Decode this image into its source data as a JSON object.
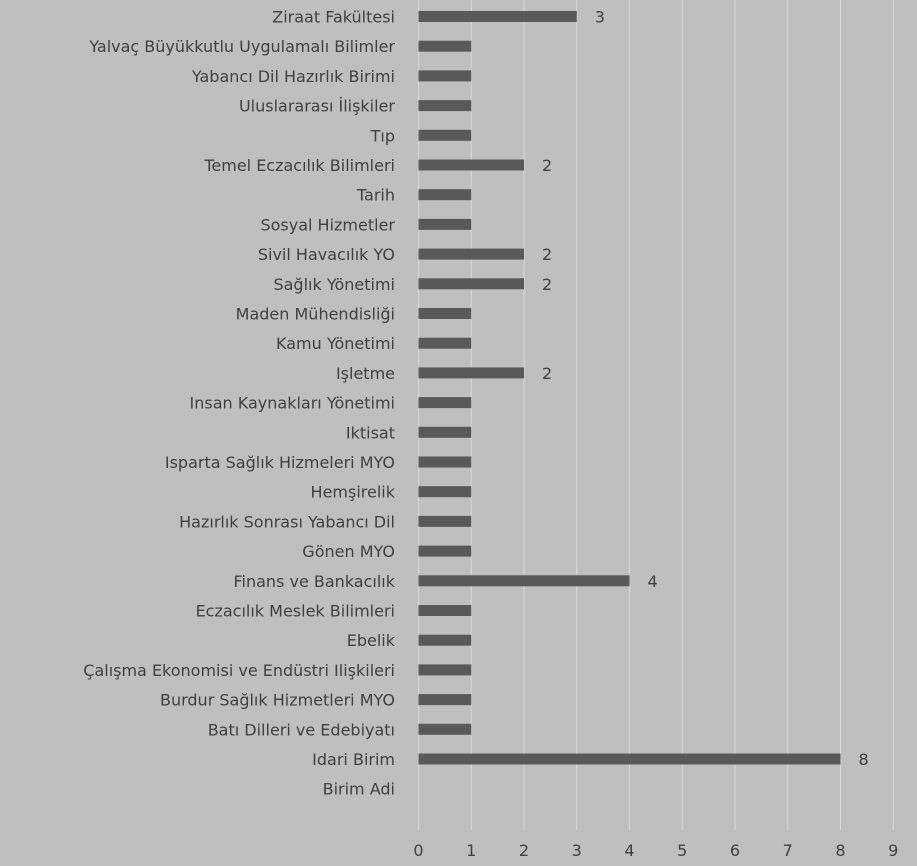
{
  "chart_data": {
    "type": "bar",
    "orientation": "horizontal",
    "title": "",
    "xlabel": "",
    "ylabel": "",
    "xlim": [
      0,
      9
    ],
    "x_ticks": [
      "0",
      "1",
      "2",
      "3",
      "4",
      "5",
      "6",
      "7",
      "8",
      "9"
    ],
    "grid": true,
    "legend": "none",
    "colors": {
      "background": "#bfbfbf",
      "bar": "#595959",
      "gridline": "#d9d9d9",
      "text": "#404040"
    },
    "categories": [
      "Ziraat Fakültesi",
      "Yalvaç Büyükkutlu Uygulamalı Bilimler",
      "Yabancı Dil Hazırlık Birimi",
      "Uluslararası İlişkiler",
      "Tıp",
      "Temel Eczacılık Bilimleri",
      "Tarih",
      "Sosyal Hizmetler",
      "Sivil Havacılık YO",
      "Sağlık Yönetimi",
      "Maden Mühendisliği",
      "Kamu Yönetimi",
      "Işletme",
      "Insan Kaynakları Yönetimi",
      "Iktisat",
      "Isparta Sağlık Hizmeleri MYO",
      "Hemşirelik",
      "Hazırlık Sonrası Yabancı Dil",
      "Gönen MYO",
      "Finans ve Bankacılık",
      "Eczacılık Meslek Bilimleri",
      "Ebelik",
      "Çalışma Ekonomisi ve Endüstri Ilişkileri",
      "Burdur Sağlık Hizmetleri MYO",
      "Batı Dilleri ve Edebiyatı",
      "Idari Birim",
      "Birim Adi"
    ],
    "values": [
      3,
      1,
      1,
      1,
      1,
      2,
      1,
      1,
      2,
      2,
      1,
      1,
      2,
      1,
      1,
      1,
      1,
      1,
      1,
      4,
      1,
      1,
      1,
      1,
      1,
      8,
      null
    ],
    "data_labels": [
      "3",
      "",
      "",
      "",
      "",
      "2",
      "",
      "",
      "2",
      "2",
      "",
      "",
      "2",
      "",
      "",
      "",
      "",
      "",
      "",
      "4",
      "",
      "",
      "",
      "",
      "",
      "8",
      ""
    ]
  }
}
